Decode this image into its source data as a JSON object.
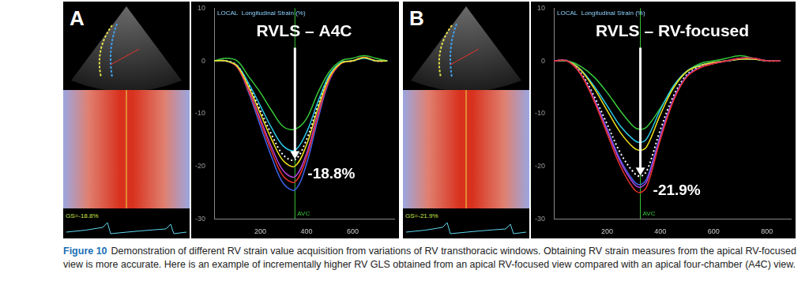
{
  "figure": {
    "caption_label": "Figure 10",
    "caption_text": "Demonstration of different RV strain value acquisition from variations of RV transthoracic windows. Obtaining RV strain measures from the apical RV-focused view is more accurate. Here is an example of incrementally higher RV GLS obtained from an apical RV-focused view compared with an apical four-chamber (A4C) view."
  },
  "chart_data": [
    {
      "type": "line",
      "panel_label": "A",
      "title": "RVLS – A4C",
      "header": "LOCAL  Longitudinal Strain (%)",
      "echo_label": "GS=-18.8%",
      "x": [
        0,
        50,
        100,
        150,
        200,
        250,
        300,
        350,
        400,
        450,
        500,
        550,
        600,
        650,
        700,
        750
      ],
      "xlim": [
        0,
        780
      ],
      "xticks": [
        200,
        400,
        600
      ],
      "ylim": [
        -30,
        10
      ],
      "yticks": [
        -30,
        -20,
        -10,
        0,
        10
      ],
      "grid": false,
      "series": [
        {
          "color": "#f2e21b",
          "line_style": "solid",
          "values": [
            0,
            0,
            -1,
            -5,
            -10,
            -15,
            -19,
            -20,
            -16,
            -9,
            -3,
            -0.4,
            0,
            0.6,
            0,
            0
          ]
        },
        {
          "color": "#27c7e8",
          "line_style": "solid",
          "values": [
            0,
            0,
            -0.9,
            -4.3,
            -8.5,
            -12.8,
            -16.2,
            -17,
            -13.6,
            -7.7,
            -2.6,
            -0.3,
            0,
            0.5,
            0,
            0
          ]
        },
        {
          "color": "#37c83a",
          "line_style": "solid",
          "values": [
            0,
            0.5,
            0,
            -3,
            -6,
            -9.5,
            -12.5,
            -13,
            -11,
            -6,
            -2,
            0,
            0.5,
            1,
            0.5,
            0
          ]
        },
        {
          "color": "#e8322b",
          "line_style": "solid",
          "values": [
            0,
            0,
            -1.2,
            -5.8,
            -11.5,
            -17.3,
            -21.9,
            -23,
            -18.4,
            -10.4,
            -3.5,
            -0.5,
            0,
            0.7,
            0,
            0
          ]
        },
        {
          "color": "#b340d8",
          "line_style": "solid",
          "values": [
            0,
            0,
            -1.1,
            -5.5,
            -11,
            -16.5,
            -20.9,
            -22,
            -17.6,
            -9.9,
            -3.3,
            -0.4,
            0,
            0.7,
            0,
            0
          ]
        },
        {
          "color": "#3f63f0",
          "line_style": "solid",
          "values": [
            0,
            0,
            -1.2,
            -6.1,
            -12.3,
            -18.4,
            -23.3,
            -24.5,
            -19.6,
            -11,
            -3.7,
            -0.5,
            0,
            0.7,
            0,
            0
          ]
        },
        {
          "color": "#ffffff",
          "line_style": "dotted",
          "values": [
            0,
            0,
            -0.9,
            -4.7,
            -9.4,
            -14.1,
            -17.9,
            -18.8,
            -15,
            -8.5,
            -2.8,
            -0.4,
            0,
            0.6,
            0,
            0
          ]
        }
      ],
      "vline": {
        "x": 350,
        "label": "AVC"
      },
      "annotation": {
        "x": 350,
        "y": -18.8,
        "label": "-18.8%"
      }
    },
    {
      "type": "line",
      "panel_label": "B",
      "title": "RVLS – RV-focused",
      "header": "LOCAL  Longitudinal Strain (%)",
      "echo_label": "GS=-21.9%",
      "x": [
        0,
        50,
        100,
        150,
        200,
        250,
        300,
        325,
        350,
        400,
        450,
        500,
        550,
        600,
        650,
        700,
        750,
        800,
        850
      ],
      "xlim": [
        0,
        890
      ],
      "xticks": [
        200,
        400,
        600,
        800
      ],
      "ylim": [
        -30,
        10
      ],
      "yticks": [
        -30,
        -20,
        -10,
        0,
        10
      ],
      "grid": false,
      "series": [
        {
          "color": "#e8322b",
          "line_style": "solid",
          "values": [
            0,
            0,
            -2.5,
            -7.5,
            -13.8,
            -20,
            -24.3,
            -25,
            -23.8,
            -15,
            -7.5,
            -3,
            -1.3,
            -0.5,
            0,
            0.5,
            0.5,
            0,
            0
          ]
        },
        {
          "color": "#b340d8",
          "line_style": "solid",
          "values": [
            0,
            0,
            -2.4,
            -7.2,
            -13.2,
            -19.2,
            -23.3,
            -24,
            -22.8,
            -14.4,
            -7.2,
            -2.9,
            -1.2,
            -0.5,
            0,
            0.5,
            0.5,
            0,
            0
          ]
        },
        {
          "color": "#3f63f0",
          "line_style": "solid",
          "values": [
            0,
            0,
            -2.4,
            -7.1,
            -12.9,
            -18.8,
            -22.8,
            -23.5,
            -22.3,
            -14.1,
            -7.1,
            -2.8,
            -1.2,
            -0.5,
            0,
            0.5,
            0.5,
            0,
            0
          ]
        },
        {
          "color": "#f2e21b",
          "line_style": "solid",
          "values": [
            0,
            0,
            -1.7,
            -5.1,
            -9.4,
            -13.6,
            -16.5,
            -17,
            -16.2,
            -10.2,
            -5.1,
            -2,
            -0.9,
            -0.3,
            0,
            0.3,
            0.3,
            0,
            0
          ]
        },
        {
          "color": "#27c7e8",
          "line_style": "solid",
          "values": [
            0,
            0,
            -1.6,
            -4.7,
            -8.5,
            -12.4,
            -15,
            -15.5,
            -14.7,
            -9.3,
            -4.7,
            -1.9,
            -0.8,
            -0.3,
            0,
            0.3,
            0.3,
            0,
            0
          ]
        },
        {
          "color": "#37c83a",
          "line_style": "solid",
          "values": [
            0,
            0,
            -1,
            -3,
            -6,
            -9.5,
            -12.5,
            -13,
            -12.5,
            -9,
            -5,
            -2,
            -0.5,
            0,
            0.5,
            1,
            0.5,
            0,
            0
          ]
        },
        {
          "color": "#ffffff",
          "line_style": "dotted",
          "values": [
            0,
            0,
            -2.2,
            -6.6,
            -12,
            -17.5,
            -21.2,
            -21.9,
            -20.8,
            -13.1,
            -6.6,
            -2.6,
            -1.1,
            -0.4,
            0,
            0.4,
            0.4,
            0,
            0
          ]
        }
      ],
      "vline": {
        "x": 325,
        "label": "AVC"
      },
      "annotation": {
        "x": 325,
        "y": -21.9,
        "label": "-21.9%"
      }
    }
  ]
}
